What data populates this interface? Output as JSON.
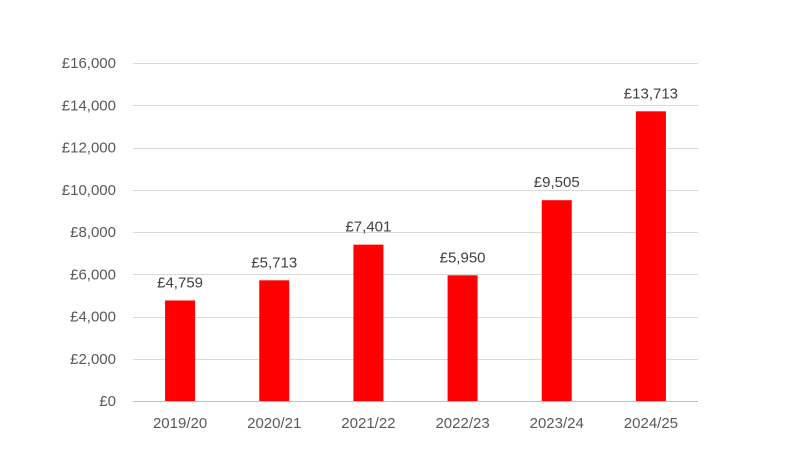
{
  "chart_data": {
    "type": "bar",
    "title": "",
    "xlabel": "",
    "ylabel": "",
    "categories": [
      "2019/20",
      "2020/21",
      "2021/22",
      "2022/23",
      "2023/24",
      "2024/25"
    ],
    "values": [
      4759,
      5713,
      7401,
      5950,
      9505,
      13713
    ],
    "data_labels": [
      "£4,759",
      "£5,713",
      "£7,401",
      "£5,950",
      "£9,505",
      "£13,713"
    ],
    "ylim": [
      0,
      16000
    ],
    "y_ticks": [
      0,
      2000,
      4000,
      6000,
      8000,
      10000,
      12000,
      14000,
      16000
    ],
    "y_tick_labels": [
      "£0",
      "£2,000",
      "£4,000",
      "£6,000",
      "£8,000",
      "£10,000",
      "£12,000",
      "£14,000",
      "£16,000"
    ],
    "grid": true,
    "legend": "none",
    "bar_color": "#ff0000"
  }
}
